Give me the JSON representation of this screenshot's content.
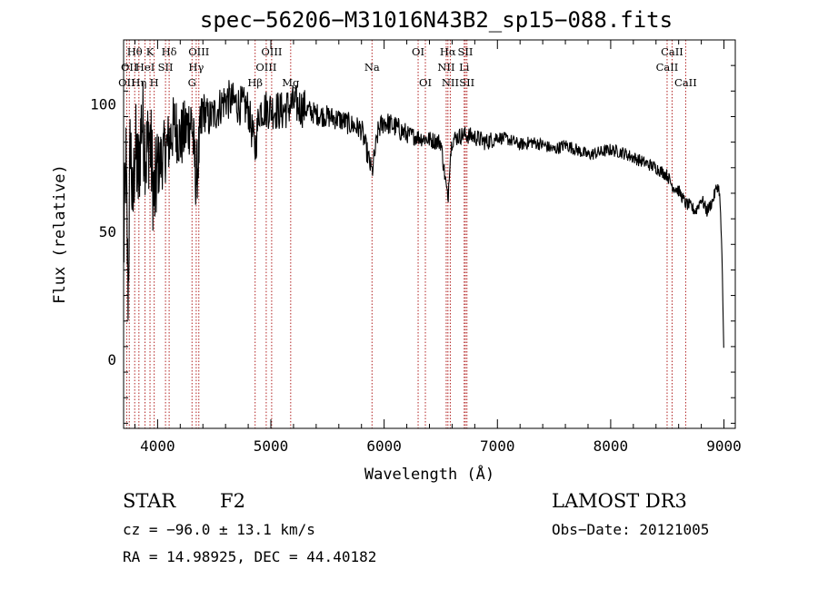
{
  "chart_data": {
    "type": "line",
    "title": "spec−56206−M31016N43B2_sp15−088.fits",
    "xlabel": "Wavelength (Å)",
    "ylabel": "Flux (relative)",
    "xlim": [
      3700,
      9100
    ],
    "ylim": [
      -27,
      125
    ],
    "x_ticks": [
      4000,
      5000,
      6000,
      7000,
      8000,
      9000
    ],
    "x_tick_labels": [
      "4000",
      "5000",
      "6000",
      "7000",
      "8000",
      "9000"
    ],
    "y_ticks": [
      0,
      50,
      100
    ],
    "y_tick_labels": [
      "0",
      "50",
      "100"
    ],
    "spectrum": {
      "x": [
        3700,
        3720,
        3740,
        3760,
        3780,
        3800,
        3830,
        3860,
        3900,
        3930,
        3970,
        4000,
        4050,
        4100,
        4150,
        4200,
        4250,
        4300,
        4340,
        4400,
        4450,
        4500,
        4600,
        4700,
        4800,
        4861,
        4900,
        5000,
        5100,
        5200,
        5300,
        5400,
        5500,
        5600,
        5700,
        5800,
        5893,
        5950,
        6000,
        6100,
        6200,
        6300,
        6400,
        6500,
        6563,
        6580,
        6600,
        6700,
        6800,
        6900,
        7000,
        7100,
        7200,
        7300,
        7400,
        7500,
        7600,
        7700,
        7800,
        7900,
        8000,
        8100,
        8200,
        8300,
        8400,
        8500,
        8542,
        8600,
        8662,
        8700,
        8750,
        8800,
        8850,
        8900,
        8940,
        8960,
        8980,
        9000
      ],
      "y": [
        40,
        78,
        25,
        90,
        55,
        85,
        70,
        95,
        80,
        88,
        62,
        75,
        80,
        85,
        92,
        86,
        90,
        94,
        70,
        98,
        94,
        96,
        102,
        100,
        98,
        82,
        98,
        98,
        97,
        100,
        98,
        96,
        95,
        94,
        92,
        90,
        73,
        90,
        93,
        91,
        88,
        87,
        86,
        85,
        62,
        78,
        86,
        88,
        87,
        85,
        87,
        86,
        84,
        85,
        84,
        82,
        84,
        82,
        80,
        81,
        82,
        81,
        79,
        77,
        75,
        72,
        68,
        66,
        61,
        60,
        58,
        63,
        58,
        62,
        68,
        66,
        45,
        0
      ]
    },
    "emission_lines": [
      {
        "wavelength": 3727,
        "label": "OII",
        "row": 3
      },
      {
        "wavelength": 3750,
        "label": "OII",
        "row": 2
      },
      {
        "wavelength": 3798,
        "label": "Hθ",
        "row": 1
      },
      {
        "wavelength": 3835,
        "label": "Hη",
        "row": 3
      },
      {
        "wavelength": 3889,
        "label": "HeI",
        "row": 2
      },
      {
        "wavelength": 3933,
        "label": "K",
        "row": 1
      },
      {
        "wavelength": 3970,
        "label": "H",
        "row": 3
      },
      {
        "wavelength": 4070,
        "label": "SII",
        "row": 2
      },
      {
        "wavelength": 4102,
        "label": "Hδ",
        "row": 1
      },
      {
        "wavelength": 4304,
        "label": "G",
        "row": 3
      },
      {
        "wavelength": 4341,
        "label": "Hγ",
        "row": 2
      },
      {
        "wavelength": 4364,
        "label": "OIII",
        "row": 1
      },
      {
        "wavelength": 4861,
        "label": "Hβ",
        "row": 3
      },
      {
        "wavelength": 4959,
        "label": "OIII",
        "row": 2
      },
      {
        "wavelength": 5007,
        "label": "OIII",
        "row": 1
      },
      {
        "wavelength": 5175,
        "label": "Mg",
        "row": 3
      },
      {
        "wavelength": 5893,
        "label": "Na",
        "row": 2
      },
      {
        "wavelength": 6300,
        "label": "OI",
        "row": 1
      },
      {
        "wavelength": 6364,
        "label": "OI",
        "row": 3
      },
      {
        "wavelength": 6548,
        "label": "NII",
        "row": 2
      },
      {
        "wavelength": 6563,
        "label": "Hα",
        "row": 1
      },
      {
        "wavelength": 6584,
        "label": "NII",
        "row": 3
      },
      {
        "wavelength": 6707,
        "label": "Li",
        "row": 2
      },
      {
        "wavelength": 6717,
        "label": "SII",
        "row": 1
      },
      {
        "wavelength": 6731,
        "label": "SII",
        "row": 3
      },
      {
        "wavelength": 8498,
        "label": "CaII",
        "row": 2
      },
      {
        "wavelength": 8542,
        "label": "CaII",
        "row": 1
      },
      {
        "wavelength": 8662,
        "label": "CaII",
        "row": 3
      }
    ],
    "colors": {
      "spectrum": "#000000",
      "line_marker": "#b22222",
      "axes": "#000000"
    }
  },
  "info": {
    "object_class": "STAR",
    "subclass": "F2",
    "survey": "LAMOST DR3",
    "velocity": "cz = −96.0 ± 13.1 km/s",
    "obs_date": "Obs−Date: 20121005",
    "coords": "RA =  14.98925, DEC =  44.40182"
  }
}
